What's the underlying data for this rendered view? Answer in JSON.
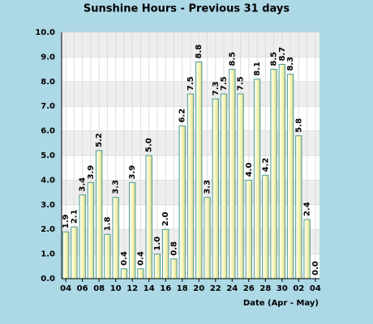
{
  "chart_data": {
    "type": "bar",
    "title": "Sunshine Hours - Previous 31 days",
    "x_label": "Date (Apr - May)",
    "categories": [
      "04",
      null,
      "06",
      null,
      "08",
      null,
      "10",
      null,
      "12",
      null,
      "14",
      null,
      "16",
      null,
      "18",
      null,
      "20",
      null,
      "22",
      null,
      "24",
      null,
      "26",
      null,
      "28",
      null,
      "30",
      null,
      "02",
      null,
      "04"
    ],
    "values": [
      1.9,
      2.1,
      3.4,
      3.9,
      5.2,
      1.8,
      3.3,
      0.4,
      3.9,
      0.4,
      5.0,
      1.0,
      2.0,
      0.8,
      6.2,
      7.5,
      8.8,
      3.3,
      7.3,
      7.5,
      8.5,
      7.5,
      4.0,
      8.1,
      4.2,
      8.5,
      8.7,
      8.3,
      5.8,
      2.4,
      0.0
    ],
    "value_labels": [
      "1.9",
      "2.1",
      "3.4",
      "3.9",
      "5.2",
      "1.8",
      "3.3",
      "0.4",
      "3.9",
      "0.4",
      "5.0",
      "1.0",
      "2.0",
      "0.8",
      "6.2",
      "7.5",
      "8.8",
      "3.3",
      "7.3",
      "7.5",
      "8.5",
      "7.5",
      "4.0",
      "8.1",
      "4.2",
      "8.5",
      "8.7",
      "8.3",
      "5.8",
      "2.4",
      "0.0"
    ],
    "color": "#f7f7b8",
    "ylim": [
      0,
      10
    ],
    "yticks": [
      {
        "value": 0,
        "label": "0.0"
      },
      {
        "value": 1,
        "label": "1.0"
      },
      {
        "value": 2,
        "label": "2.0"
      },
      {
        "value": 3,
        "label": "3.0"
      },
      {
        "value": 4,
        "label": "4.0"
      },
      {
        "value": 5,
        "label": "5.0"
      },
      {
        "value": 6,
        "label": "6.0"
      },
      {
        "value": 7,
        "label": "7.0"
      },
      {
        "value": 8,
        "label": "8.0"
      },
      {
        "value": 9,
        "label": "9.0"
      },
      {
        "value": 10,
        "label": "10.0"
      }
    ],
    "grid": true
  }
}
